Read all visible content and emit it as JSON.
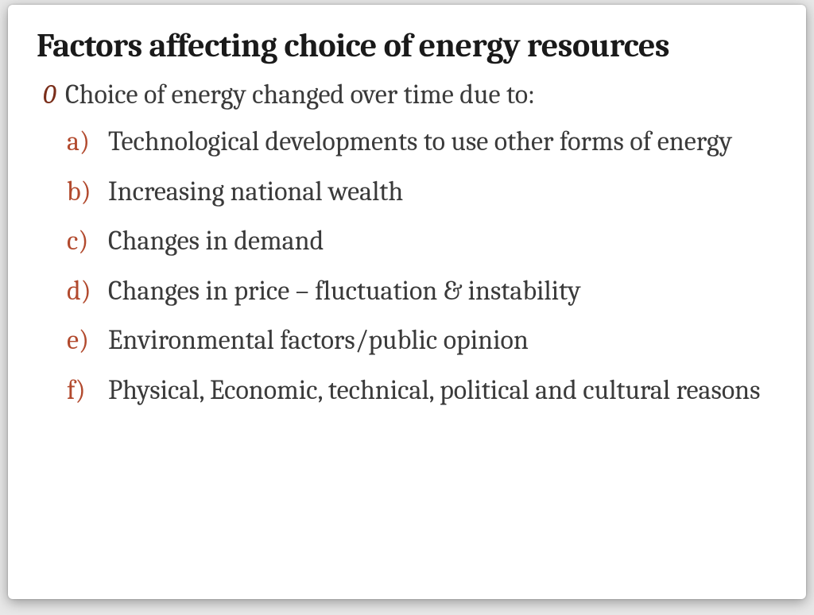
{
  "title": "Factors affecting  choice of energy resources",
  "intro_bullet": "0",
  "intro_text": "Choice of energy changed over time due to:",
  "items": [
    {
      "marker": "a)",
      "text": "Technological developments to use other forms of energy"
    },
    {
      "marker": "b)",
      "text": "Increasing national wealth"
    },
    {
      "marker": "c)",
      "text": "Changes in demand"
    },
    {
      "marker": "d)",
      "text": "Changes in price – fluctuation & instability"
    },
    {
      "marker": "e)",
      "text": "Environmental factors/public opinion"
    },
    {
      "marker": "f)",
      "text": "Physical, Economic, technical, political and cultural reasons"
    }
  ],
  "colors": {
    "title": "#1a1a1a",
    "body_text": "#3a3a3a",
    "marker": "#b24a2e",
    "intro_bullet": "#7a2e1a",
    "slide_bg": "#ffffff",
    "page_bg": "#e8e8e8"
  },
  "typography": {
    "family": "Cambria / Georgia serif",
    "title_size_pt": 32,
    "body_size_pt": 26
  }
}
